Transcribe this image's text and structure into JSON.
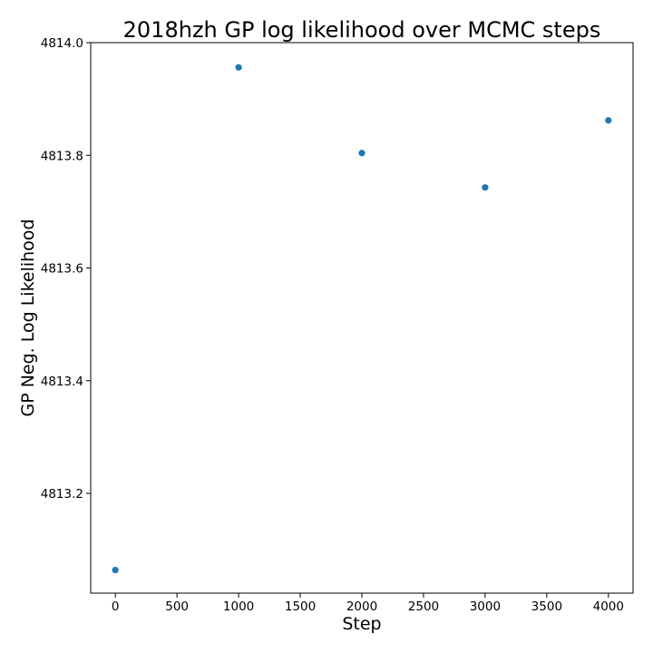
{
  "chart_data": {
    "type": "scatter",
    "title": "2018hzh  GP log likelihood over MCMC steps",
    "xlabel": "Step",
    "ylabel": "GP Neg. Log Likelihood",
    "xlim": [
      -200,
      4200
    ],
    "ylim": [
      4813.023,
      4814.0
    ],
    "xticks": [
      0,
      500,
      1000,
      1500,
      2000,
      2500,
      3000,
      3500,
      4000
    ],
    "xtick_labels": [
      "0",
      "500",
      "1000",
      "1500",
      "2000",
      "2500",
      "3000",
      "3500",
      "4000"
    ],
    "yticks": [
      4813.2,
      4813.4,
      4813.6,
      4813.8,
      4814.0
    ],
    "ytick_labels": [
      "4813.2",
      "4813.4",
      "4813.6",
      "4813.8",
      "4814.0"
    ],
    "grid": false,
    "series": [
      {
        "color": "#1f77b4",
        "x": [
          0,
          1000,
          2000,
          3000,
          4000
        ],
        "y": [
          4813.064,
          4813.956,
          4813.804,
          4813.743,
          4813.862
        ]
      }
    ]
  }
}
